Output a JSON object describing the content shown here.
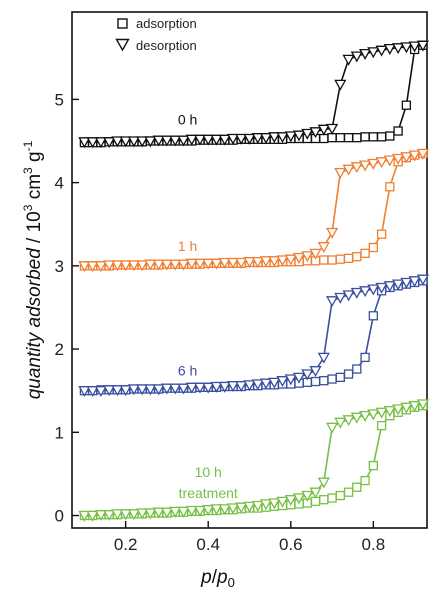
{
  "chart_data": {
    "type": "scatter",
    "xlabel": "p/p0",
    "ylabel": "quantity adsorbed / 10^3 cm^3 g^-1",
    "xlim": [
      0.07,
      0.93
    ],
    "ylim": [
      -0.15,
      6.05
    ],
    "xticks": [
      0.2,
      0.4,
      0.6,
      0.8
    ],
    "yticks": [
      0,
      1,
      2,
      3,
      4,
      5
    ],
    "xtick_labels": [
      "0.2",
      "0.4",
      "0.6",
      "0.8"
    ],
    "ytick_labels": [
      "0",
      "1",
      "2",
      "3",
      "4",
      "5"
    ],
    "grid": false,
    "legend": {
      "position": "top-left",
      "entries": [
        {
          "label": "adsorption",
          "marker": "square"
        },
        {
          "label": "desorption",
          "marker": "triangle-down"
        }
      ]
    },
    "series": [
      {
        "name": "0 h",
        "color": "#111111",
        "label_text": "0 h",
        "label_pos": [
          0.35,
          4.7
        ],
        "adsorption": {
          "x": [
            0.1,
            0.12,
            0.14,
            0.16,
            0.18,
            0.2,
            0.22,
            0.24,
            0.26,
            0.28,
            0.3,
            0.32,
            0.34,
            0.36,
            0.38,
            0.4,
            0.42,
            0.44,
            0.46,
            0.48,
            0.5,
            0.52,
            0.54,
            0.56,
            0.58,
            0.6,
            0.62,
            0.64,
            0.66,
            0.68,
            0.7,
            0.72,
            0.74,
            0.76,
            0.78,
            0.8,
            0.82,
            0.84,
            0.86,
            0.88,
            0.9,
            0.92
          ],
          "y": [
            4.48,
            4.48,
            4.48,
            4.49,
            4.49,
            4.49,
            4.49,
            4.49,
            4.5,
            4.5,
            4.5,
            4.5,
            4.5,
            4.5,
            4.51,
            4.51,
            4.51,
            4.51,
            4.51,
            4.52,
            4.52,
            4.52,
            4.52,
            4.52,
            4.52,
            4.53,
            4.53,
            4.53,
            4.53,
            4.53,
            4.54,
            4.54,
            4.54,
            4.54,
            4.55,
            4.55,
            4.55,
            4.56,
            4.62,
            4.93,
            5.6,
            5.65
          ]
        },
        "desorption": {
          "x": [
            0.1,
            0.12,
            0.14,
            0.16,
            0.18,
            0.2,
            0.22,
            0.24,
            0.26,
            0.28,
            0.3,
            0.32,
            0.34,
            0.36,
            0.38,
            0.4,
            0.42,
            0.44,
            0.46,
            0.48,
            0.5,
            0.52,
            0.54,
            0.56,
            0.58,
            0.6,
            0.62,
            0.64,
            0.66,
            0.68,
            0.7,
            0.72,
            0.74,
            0.76,
            0.78,
            0.8,
            0.82,
            0.84,
            0.86,
            0.88,
            0.9,
            0.92
          ],
          "y": [
            4.49,
            4.49,
            4.49,
            4.49,
            4.5,
            4.5,
            4.5,
            4.5,
            4.5,
            4.51,
            4.51,
            4.51,
            4.51,
            4.52,
            4.52,
            4.52,
            4.52,
            4.52,
            4.53,
            4.53,
            4.53,
            4.54,
            4.54,
            4.55,
            4.55,
            4.56,
            4.57,
            4.59,
            4.61,
            4.64,
            4.65,
            5.18,
            5.48,
            5.52,
            5.55,
            5.57,
            5.59,
            5.61,
            5.62,
            5.63,
            5.64,
            5.65
          ]
        }
      },
      {
        "name": "1 h",
        "color": "#f07f32",
        "label_text": "1 h",
        "label_pos": [
          0.35,
          3.18
        ],
        "adsorption": {
          "x": [
            0.1,
            0.12,
            0.14,
            0.16,
            0.18,
            0.2,
            0.22,
            0.24,
            0.26,
            0.28,
            0.3,
            0.32,
            0.34,
            0.36,
            0.38,
            0.4,
            0.42,
            0.44,
            0.46,
            0.48,
            0.5,
            0.52,
            0.54,
            0.56,
            0.58,
            0.6,
            0.62,
            0.64,
            0.66,
            0.68,
            0.7,
            0.72,
            0.74,
            0.76,
            0.78,
            0.8,
            0.82,
            0.84,
            0.86,
            0.88,
            0.9,
            0.92
          ],
          "y": [
            3.0,
            3.0,
            3.0,
            3.0,
            3.01,
            3.01,
            3.01,
            3.01,
            3.01,
            3.01,
            3.02,
            3.02,
            3.02,
            3.02,
            3.02,
            3.03,
            3.03,
            3.03,
            3.03,
            3.03,
            3.04,
            3.04,
            3.04,
            3.04,
            3.05,
            3.05,
            3.05,
            3.06,
            3.06,
            3.07,
            3.07,
            3.08,
            3.09,
            3.11,
            3.15,
            3.22,
            3.38,
            3.95,
            4.25,
            4.3,
            4.33,
            4.35
          ]
        },
        "desorption": {
          "x": [
            0.1,
            0.12,
            0.14,
            0.16,
            0.18,
            0.2,
            0.22,
            0.24,
            0.26,
            0.28,
            0.3,
            0.32,
            0.34,
            0.36,
            0.38,
            0.4,
            0.42,
            0.44,
            0.46,
            0.48,
            0.5,
            0.52,
            0.54,
            0.56,
            0.58,
            0.6,
            0.62,
            0.64,
            0.66,
            0.68,
            0.7,
            0.72,
            0.74,
            0.76,
            0.78,
            0.8,
            0.82,
            0.84,
            0.86,
            0.88,
            0.9,
            0.92
          ],
          "y": [
            3.0,
            3.0,
            3.0,
            3.01,
            3.01,
            3.01,
            3.01,
            3.01,
            3.02,
            3.02,
            3.02,
            3.02,
            3.02,
            3.03,
            3.03,
            3.03,
            3.03,
            3.04,
            3.04,
            3.04,
            3.05,
            3.05,
            3.06,
            3.06,
            3.07,
            3.08,
            3.1,
            3.12,
            3.15,
            3.23,
            3.4,
            4.12,
            4.16,
            4.19,
            4.21,
            4.23,
            4.25,
            4.27,
            4.29,
            4.31,
            4.33,
            4.35
          ]
        }
      },
      {
        "name": "6 h",
        "color": "#3a4fa0",
        "label_text": "6 h",
        "label_pos": [
          0.35,
          1.68
        ],
        "adsorption": {
          "x": [
            0.1,
            0.12,
            0.14,
            0.16,
            0.18,
            0.2,
            0.22,
            0.24,
            0.26,
            0.28,
            0.3,
            0.32,
            0.34,
            0.36,
            0.38,
            0.4,
            0.42,
            0.44,
            0.46,
            0.48,
            0.5,
            0.52,
            0.54,
            0.56,
            0.58,
            0.6,
            0.62,
            0.64,
            0.66,
            0.68,
            0.7,
            0.72,
            0.74,
            0.76,
            0.78,
            0.8,
            0.82,
            0.84,
            0.86,
            0.88,
            0.9,
            0.92
          ],
          "y": [
            1.5,
            1.5,
            1.51,
            1.51,
            1.51,
            1.51,
            1.52,
            1.52,
            1.52,
            1.52,
            1.53,
            1.53,
            1.53,
            1.53,
            1.54,
            1.54,
            1.54,
            1.55,
            1.55,
            1.55,
            1.56,
            1.56,
            1.57,
            1.57,
            1.58,
            1.58,
            1.59,
            1.6,
            1.61,
            1.62,
            1.64,
            1.66,
            1.7,
            1.76,
            1.9,
            2.4,
            2.7,
            2.74,
            2.76,
            2.78,
            2.8,
            2.82
          ]
        },
        "desorption": {
          "x": [
            0.1,
            0.12,
            0.14,
            0.16,
            0.18,
            0.2,
            0.22,
            0.24,
            0.26,
            0.28,
            0.3,
            0.32,
            0.34,
            0.36,
            0.38,
            0.4,
            0.42,
            0.44,
            0.46,
            0.48,
            0.5,
            0.52,
            0.54,
            0.56,
            0.58,
            0.6,
            0.62,
            0.64,
            0.66,
            0.68,
            0.7,
            0.72,
            0.74,
            0.76,
            0.78,
            0.8,
            0.82,
            0.84,
            0.86,
            0.88,
            0.9,
            0.92
          ],
          "y": [
            1.5,
            1.5,
            1.5,
            1.51,
            1.51,
            1.51,
            1.52,
            1.52,
            1.52,
            1.52,
            1.53,
            1.53,
            1.53,
            1.54,
            1.54,
            1.54,
            1.55,
            1.55,
            1.56,
            1.56,
            1.57,
            1.58,
            1.59,
            1.6,
            1.62,
            1.64,
            1.66,
            1.7,
            1.74,
            1.9,
            2.58,
            2.62,
            2.65,
            2.68,
            2.7,
            2.72,
            2.74,
            2.76,
            2.78,
            2.8,
            2.82,
            2.84
          ]
        }
      },
      {
        "name": "10 h treatment",
        "color": "#77c043",
        "label_text": "10 h",
        "label_text_2": "treatment",
        "label_pos": [
          0.4,
          0.46
        ],
        "label_pos_2": [
          0.4,
          0.21
        ],
        "adsorption": {
          "x": [
            0.1,
            0.12,
            0.14,
            0.16,
            0.18,
            0.2,
            0.22,
            0.24,
            0.26,
            0.28,
            0.3,
            0.32,
            0.34,
            0.36,
            0.38,
            0.4,
            0.42,
            0.44,
            0.46,
            0.48,
            0.5,
            0.52,
            0.54,
            0.56,
            0.58,
            0.6,
            0.62,
            0.64,
            0.66,
            0.68,
            0.7,
            0.72,
            0.74,
            0.76,
            0.78,
            0.8,
            0.82,
            0.84,
            0.86,
            0.88,
            0.9,
            0.92
          ],
          "y": [
            0.0,
            0.0,
            0.01,
            0.01,
            0.01,
            0.02,
            0.02,
            0.02,
            0.03,
            0.03,
            0.03,
            0.04,
            0.04,
            0.05,
            0.05,
            0.06,
            0.06,
            0.07,
            0.07,
            0.08,
            0.09,
            0.09,
            0.1,
            0.11,
            0.12,
            0.13,
            0.14,
            0.15,
            0.17,
            0.19,
            0.21,
            0.24,
            0.28,
            0.34,
            0.42,
            0.6,
            1.08,
            1.2,
            1.24,
            1.27,
            1.3,
            1.32
          ]
        },
        "desorption": {
          "x": [
            0.1,
            0.12,
            0.14,
            0.16,
            0.18,
            0.2,
            0.22,
            0.24,
            0.26,
            0.28,
            0.3,
            0.32,
            0.34,
            0.36,
            0.38,
            0.4,
            0.42,
            0.44,
            0.46,
            0.48,
            0.5,
            0.52,
            0.54,
            0.56,
            0.58,
            0.6,
            0.62,
            0.64,
            0.66,
            0.68,
            0.7,
            0.72,
            0.74,
            0.76,
            0.78,
            0.8,
            0.82,
            0.84,
            0.86,
            0.88,
            0.9,
            0.92
          ],
          "y": [
            0.0,
            0.0,
            0.01,
            0.01,
            0.02,
            0.02,
            0.02,
            0.03,
            0.03,
            0.04,
            0.04,
            0.05,
            0.05,
            0.06,
            0.06,
            0.07,
            0.08,
            0.08,
            0.09,
            0.1,
            0.11,
            0.12,
            0.14,
            0.15,
            0.17,
            0.19,
            0.21,
            0.24,
            0.28,
            0.4,
            1.06,
            1.12,
            1.15,
            1.18,
            1.2,
            1.22,
            1.24,
            1.26,
            1.28,
            1.3,
            1.32,
            1.34
          ]
        }
      }
    ]
  }
}
